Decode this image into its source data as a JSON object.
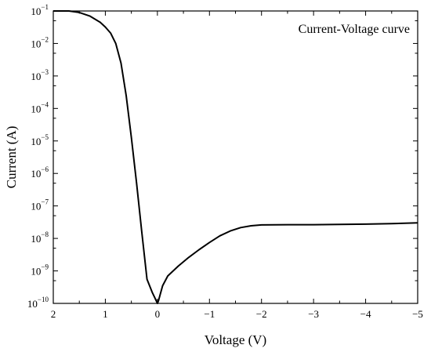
{
  "chart_data": {
    "type": "line",
    "xlabel": "Voltage (V)",
    "ylabel": "Current (A)",
    "xlim": [
      2,
      -5
    ],
    "ylim": [
      1e-10,
      0.1
    ],
    "y_scale": "log",
    "grid": false,
    "legend_placement": "top-right",
    "x_ticks": [
      {
        "value": 2,
        "label": "2"
      },
      {
        "value": 1,
        "label": "1"
      },
      {
        "value": 0,
        "label": "0"
      },
      {
        "value": -1,
        "label": "−1"
      },
      {
        "value": -2,
        "label": "−2"
      },
      {
        "value": -3,
        "label": "−3"
      },
      {
        "value": -4,
        "label": "−4"
      },
      {
        "value": -5,
        "label": "−5"
      }
    ],
    "y_ticks": [
      {
        "value": 1e-10,
        "base": "10",
        "exp": "−10"
      },
      {
        "value": 1e-09,
        "base": "10",
        "exp": "−9"
      },
      {
        "value": 1e-08,
        "base": "10",
        "exp": "−8"
      },
      {
        "value": 1e-07,
        "base": "10",
        "exp": "−7"
      },
      {
        "value": 1e-06,
        "base": "10",
        "exp": "−6"
      },
      {
        "value": 1e-05,
        "base": "10",
        "exp": "−5"
      },
      {
        "value": 0.0001,
        "base": "10",
        "exp": "−4"
      },
      {
        "value": 0.001,
        "base": "10",
        "exp": "−3"
      },
      {
        "value": 0.01,
        "base": "10",
        "exp": "−2"
      },
      {
        "value": 0.1,
        "base": "10",
        "exp": "−1"
      }
    ],
    "series": [
      {
        "name": "Current-Voltage curve",
        "color": "#000000",
        "x": [
          2.0,
          1.7,
          1.5,
          1.3,
          1.1,
          1.0,
          0.9,
          0.8,
          0.7,
          0.6,
          0.5,
          0.4,
          0.3,
          0.2,
          0.1,
          0.05,
          0.0,
          -0.02,
          -0.1,
          -0.2,
          -0.4,
          -0.6,
          -0.8,
          -1.0,
          -1.2,
          -1.4,
          -1.6,
          -1.8,
          -2.0,
          -2.5,
          -3.0,
          -3.5,
          -4.0,
          -4.5,
          -5.0
        ],
        "y": [
          0.1,
          0.1,
          0.09,
          0.07,
          0.045,
          0.032,
          0.021,
          0.01,
          0.0025,
          0.00025,
          1.3e-05,
          5e-07,
          1.6e-08,
          5.5e-10,
          2.2e-10,
          1.5e-10,
          1e-10,
          1.2e-10,
          3.5e-10,
          7e-10,
          1.4e-09,
          2.6e-09,
          4.5e-09,
          7.5e-09,
          1.2e-08,
          1.7e-08,
          2.15e-08,
          2.45e-08,
          2.6e-08,
          2.65e-08,
          2.65e-08,
          2.7e-08,
          2.75e-08,
          2.85e-08,
          3e-08
        ]
      }
    ]
  }
}
